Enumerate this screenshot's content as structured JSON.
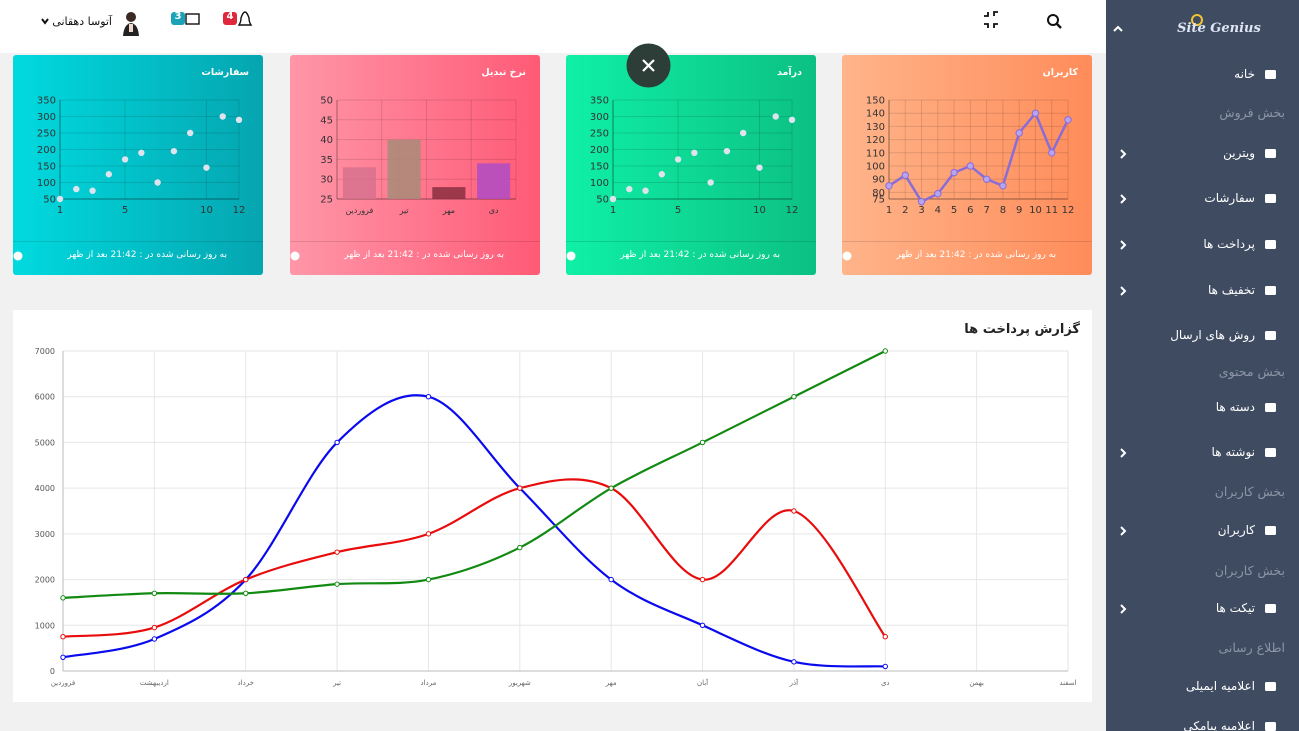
{
  "header": {
    "user_name": "آتوسا دهقانی",
    "messages_badge": 3,
    "notifications_badge": 4
  },
  "sidebar": {
    "logo": "Site Genius",
    "items": [
      "خانه",
      "بخش فروش",
      "ویترین",
      "سفارشات",
      "پرداخت ها",
      "تخفیف ها",
      "روش های ارسال",
      "بخش محتوی",
      "دسته ها",
      "نوشته ها",
      "بخش کاربران",
      "کاربران",
      "بخش کاربران",
      "تیکت ها",
      "اطلاع رسانی",
      "اعلامیه ایمیلی",
      "اعلامیه پیامکی"
    ]
  },
  "cards": [
    {
      "title": "کاربران",
      "footer": "به روز رسانی شده در : 21:42 بعد از ظهر",
      "chart": {
        "type": "line",
        "x": [
          1,
          2,
          3,
          4,
          5,
          6,
          7,
          8,
          9,
          10,
          11,
          12
        ],
        "values": [
          85,
          93,
          73,
          79,
          95,
          100,
          90,
          85,
          125,
          140,
          110,
          135
        ],
        "xlim": [
          1,
          12
        ],
        "xticks": [
          1,
          2,
          3,
          4,
          5,
          6,
          7,
          8,
          9,
          10,
          11,
          12
        ],
        "ylim": [
          75,
          150
        ],
        "yticks": [
          75,
          80,
          90,
          100,
          110,
          120,
          130,
          140,
          150
        ],
        "color": "#8a6cd6"
      }
    },
    {
      "title": "درآمد",
      "footer": "به روز رسانی شده در : 21:42 بعد از ظهر",
      "chart": {
        "type": "scatter",
        "x": [
          1,
          2,
          3,
          4,
          5,
          6,
          7,
          8,
          9,
          10,
          11,
          12
        ],
        "values": [
          50,
          80,
          75,
          125,
          170,
          190,
          100,
          195,
          250,
          145,
          300,
          290
        ],
        "xlim": [
          1,
          12
        ],
        "xticks": [
          1,
          5,
          10,
          12
        ],
        "ylim": [
          50,
          350
        ],
        "yticks": [
          50,
          100,
          150,
          200,
          250,
          300,
          350
        ],
        "color": "#dfe3ee"
      }
    },
    {
      "title": "نرخ تبدیل",
      "footer": "به روز رسانی شده در : 21:42 بعد از ظهر",
      "chart": {
        "type": "bar",
        "categories": [
          "فروردین",
          "تیر",
          "مهر",
          "دی"
        ],
        "values": [
          33,
          40,
          28,
          34
        ],
        "colors": [
          "#d7718e",
          "#a88b78",
          "#8a2f40",
          "#b04cc6"
        ],
        "ylim": [
          25,
          50
        ],
        "yticks": [
          25,
          30,
          35,
          40,
          45,
          50
        ]
      }
    },
    {
      "title": "سفارشات",
      "footer": "به روز رسانی شده در : 21:42 بعد از ظهر",
      "chart": {
        "type": "scatter",
        "x": [
          1,
          2,
          3,
          4,
          5,
          6,
          7,
          8,
          9,
          10,
          11,
          12
        ],
        "values": [
          50,
          80,
          75,
          125,
          170,
          190,
          100,
          195,
          250,
          145,
          300,
          290
        ],
        "xlim": [
          1,
          12
        ],
        "xticks": [
          1,
          5,
          10,
          12
        ],
        "ylim": [
          50,
          350
        ],
        "yticks": [
          50,
          100,
          150,
          200,
          250,
          300,
          350
        ],
        "color": "#dfe3ee"
      }
    }
  ],
  "chart_data": {
    "type": "line",
    "title": "گزارش پرداخت ها",
    "categories": [
      "فروردین",
      "اردیبهشت",
      "خرداد",
      "تیر",
      "مرداد",
      "شهریور",
      "مهر",
      "آبان",
      "آذر",
      "دی",
      "بهمن",
      "اسفند"
    ],
    "series": [
      {
        "color": "#0a0aee",
        "values": [
          300,
          700,
          2000,
          5000,
          6000,
          4000,
          2000,
          1000,
          200,
          100,
          null,
          null
        ]
      },
      {
        "color": "#e80c0c",
        "values": [
          750,
          950,
          2000,
          2600,
          3000,
          4000,
          4000,
          2000,
          3500,
          750,
          null,
          null
        ]
      },
      {
        "color": "#128a12",
        "values": [
          1600,
          1700,
          1700,
          1900,
          2000,
          2700,
          4000,
          5000,
          6000,
          7000,
          null,
          null
        ]
      }
    ],
    "ylim": [
      0,
      7000
    ],
    "yticks": [
      0,
      1000,
      2000,
      3000,
      4000,
      5000,
      6000,
      7000
    ],
    "grid": true,
    "smooth": true
  }
}
